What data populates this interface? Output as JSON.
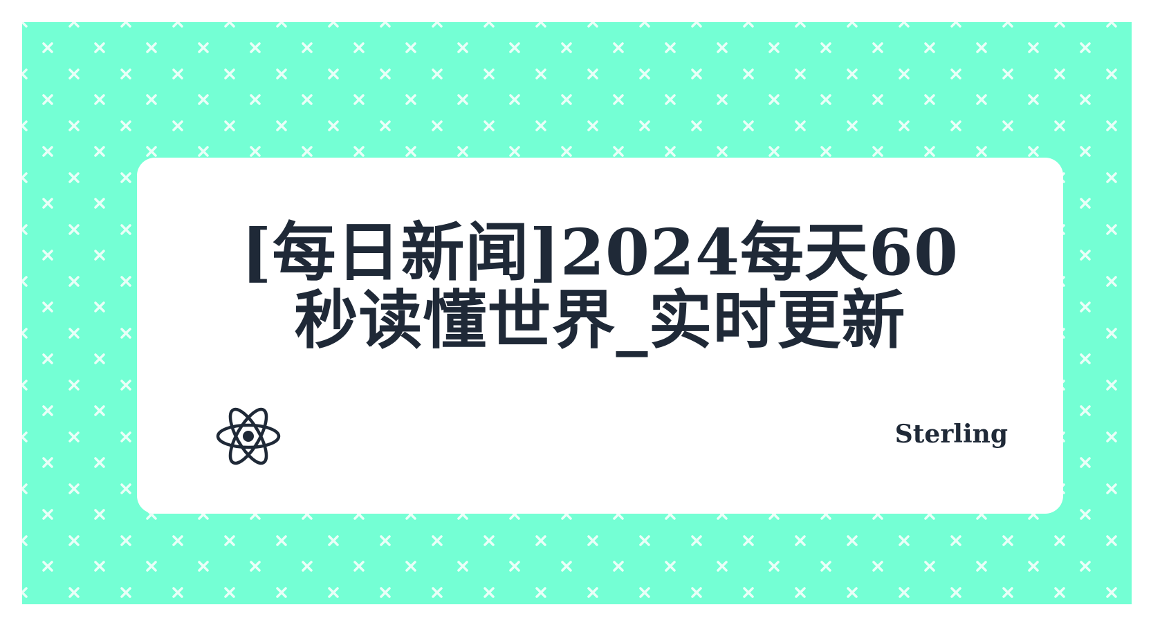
{
  "card": {
    "title_line1": "[每日新闻]2024每天60",
    "title_line2": "秒读懂世界_实时更新",
    "author": "Sterling"
  },
  "icons": {
    "logo": "react-atom-icon",
    "pattern": "x-cross-icon"
  },
  "colors": {
    "background": "#74ffd4",
    "pattern_mark": "#e8fff7",
    "card": "#ffffff",
    "text": "#1f2937"
  }
}
